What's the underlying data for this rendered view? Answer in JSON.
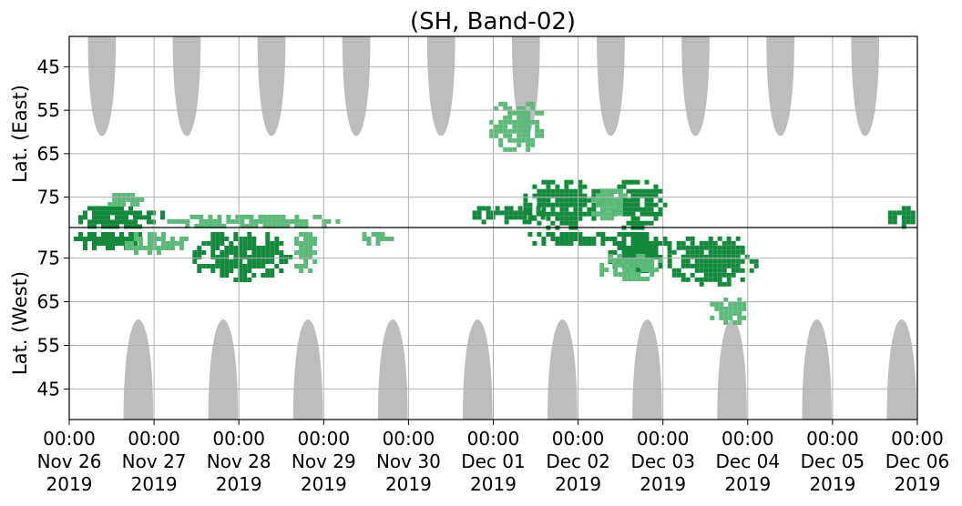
{
  "chart_data": {
    "type": "heatmap",
    "title": "(SH, Band-02)",
    "ylabel_top": "Lat. (East)",
    "ylabel_bottom": "Lat. (West)",
    "y_ticks_east": [
      "45",
      "55",
      "65",
      "75"
    ],
    "y_ticks_west": [
      "75",
      "65",
      "55",
      "45"
    ],
    "x_tick_labels": [
      [
        "00:00",
        "Nov 26",
        "2019"
      ],
      [
        "00:00",
        "Nov 27",
        "2019"
      ],
      [
        "00:00",
        "Nov 28",
        "2019"
      ],
      [
        "00:00",
        "Nov 29",
        "2019"
      ],
      [
        "00:00",
        "Nov 30",
        "2019"
      ],
      [
        "00:00",
        "Dec 01",
        "2019"
      ],
      [
        "00:00",
        "Dec 02",
        "2019"
      ],
      [
        "00:00",
        "Dec 03",
        "2019"
      ],
      [
        "00:00",
        "Dec 04",
        "2019"
      ],
      [
        "00:00",
        "Dec 05",
        "2019"
      ],
      [
        "00:00",
        "Dec 06",
        "2019"
      ]
    ],
    "x_range_days": [
      0,
      10
    ],
    "east_lat_range": [
      38,
      82
    ],
    "west_lat_range": [
      38,
      82
    ],
    "grid": true,
    "colors": {
      "no_data": "#bdbdbd",
      "strong": "#138a3b",
      "weak": "#5cba78",
      "grid": "#b0b0b0",
      "axis": "#000000"
    },
    "no_data_east": [
      {
        "start": 0.22,
        "end": 0.55,
        "min_lat": 61
      },
      {
        "start": 1.22,
        "end": 1.55,
        "min_lat": 61
      },
      {
        "start": 2.22,
        "end": 2.55,
        "min_lat": 61
      },
      {
        "start": 3.22,
        "end": 3.55,
        "min_lat": 61
      },
      {
        "start": 4.22,
        "end": 4.55,
        "min_lat": 61
      },
      {
        "start": 5.22,
        "end": 5.55,
        "min_lat": 61
      },
      {
        "start": 6.22,
        "end": 6.55,
        "min_lat": 61
      },
      {
        "start": 7.22,
        "end": 7.55,
        "min_lat": 61
      },
      {
        "start": 8.22,
        "end": 8.55,
        "min_lat": 61
      },
      {
        "start": 9.22,
        "end": 9.55,
        "min_lat": 61
      }
    ],
    "no_data_west": [
      {
        "start": 0.64,
        "end": 0.99,
        "min_lat": 61
      },
      {
        "start": 1.64,
        "end": 1.99,
        "min_lat": 61
      },
      {
        "start": 2.64,
        "end": 2.99,
        "min_lat": 61
      },
      {
        "start": 3.64,
        "end": 3.99,
        "min_lat": 61
      },
      {
        "start": 4.64,
        "end": 4.99,
        "min_lat": 61
      },
      {
        "start": 5.64,
        "end": 5.99,
        "min_lat": 61
      },
      {
        "start": 6.64,
        "end": 6.99,
        "min_lat": 61
      },
      {
        "start": 7.64,
        "end": 7.99,
        "min_lat": 61
      },
      {
        "start": 8.64,
        "end": 8.99,
        "min_lat": 61
      },
      {
        "start": 9.64,
        "end": 9.99,
        "min_lat": 61
      }
    ],
    "activity_regions": [
      {
        "hemi": "east",
        "start": 0.0,
        "end": 1.1,
        "lat_lo": 76,
        "lat_hi": 82,
        "level": "strong"
      },
      {
        "hemi": "east",
        "start": 0.4,
        "end": 0.85,
        "lat_lo": 73,
        "lat_hi": 77,
        "level": "weak"
      },
      {
        "hemi": "east",
        "start": 1.1,
        "end": 3.2,
        "lat_lo": 78,
        "lat_hi": 82,
        "level": "weak"
      },
      {
        "hemi": "west",
        "start": 0.0,
        "end": 0.9,
        "lat_lo": 77,
        "lat_hi": 82,
        "level": "strong"
      },
      {
        "hemi": "west",
        "start": 0.6,
        "end": 1.4,
        "lat_lo": 76,
        "lat_hi": 82,
        "level": "weak"
      },
      {
        "hemi": "west",
        "start": 1.4,
        "end": 2.6,
        "lat_lo": 70,
        "lat_hi": 82,
        "level": "strong"
      },
      {
        "hemi": "west",
        "start": 2.6,
        "end": 2.9,
        "lat_lo": 72,
        "lat_hi": 82,
        "level": "weak"
      },
      {
        "hemi": "west",
        "start": 3.4,
        "end": 3.8,
        "lat_lo": 78,
        "lat_hi": 82,
        "level": "weak"
      },
      {
        "hemi": "east",
        "start": 4.7,
        "end": 5.6,
        "lat_lo": 76,
        "lat_hi": 81,
        "level": "strong"
      },
      {
        "hemi": "east",
        "start": 4.9,
        "end": 5.6,
        "lat_lo": 52,
        "lat_hi": 64,
        "level": "weak"
      },
      {
        "hemi": "east",
        "start": 5.3,
        "end": 6.3,
        "lat_lo": 70,
        "lat_hi": 82,
        "level": "strong"
      },
      {
        "hemi": "east",
        "start": 6.3,
        "end": 7.0,
        "lat_lo": 70,
        "lat_hi": 82,
        "level": "strong"
      },
      {
        "hemi": "east",
        "start": 6.1,
        "end": 6.6,
        "lat_lo": 72,
        "lat_hi": 80,
        "level": "weak"
      },
      {
        "hemi": "west",
        "start": 5.3,
        "end": 6.4,
        "lat_lo": 78,
        "lat_hi": 82,
        "level": "strong"
      },
      {
        "hemi": "west",
        "start": 6.3,
        "end": 7.1,
        "lat_lo": 72,
        "lat_hi": 82,
        "level": "strong"
      },
      {
        "hemi": "west",
        "start": 7.0,
        "end": 8.1,
        "lat_lo": 69,
        "lat_hi": 81,
        "level": "strong"
      },
      {
        "hemi": "west",
        "start": 6.2,
        "end": 7.0,
        "lat_lo": 70,
        "lat_hi": 77,
        "level": "weak"
      },
      {
        "hemi": "west",
        "start": 7.5,
        "end": 8.0,
        "lat_lo": 60,
        "lat_hi": 67,
        "level": "weak"
      },
      {
        "hemi": "east",
        "start": 9.6,
        "end": 10.0,
        "lat_lo": 76,
        "lat_hi": 82,
        "level": "strong"
      }
    ]
  }
}
